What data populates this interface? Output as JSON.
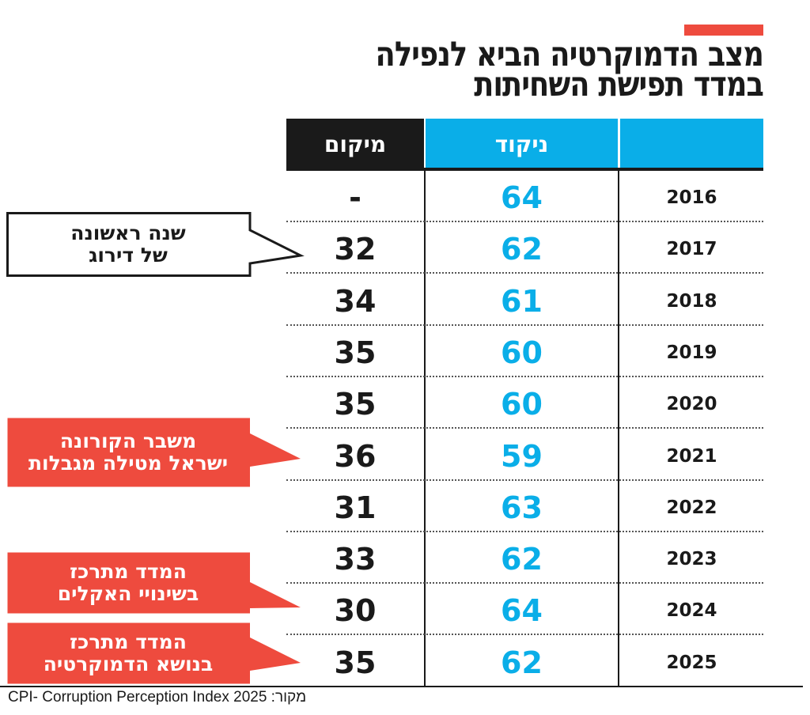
{
  "title": {
    "line1": "מצב הדמוקרטיה הביא לנפילה",
    "line2": "במדד תפישת השחיתות"
  },
  "colors": {
    "accent_red": "#ee4b3e",
    "score_blue": "#0aaee8",
    "black": "#1a1a1a"
  },
  "chart_data": {
    "type": "table",
    "columns": [
      "מיקום",
      "ניקוד",
      ""
    ],
    "rows": [
      {
        "year": "2016",
        "score": "64",
        "rank": "-"
      },
      {
        "year": "2017",
        "score": "62",
        "rank": "32"
      },
      {
        "year": "2018",
        "score": "61",
        "rank": "34"
      },
      {
        "year": "2019",
        "score": "60",
        "rank": "35"
      },
      {
        "year": "2020",
        "score": "60",
        "rank": "35"
      },
      {
        "year": "2021",
        "score": "59",
        "rank": "36"
      },
      {
        "year": "2022",
        "score": "63",
        "rank": "31"
      },
      {
        "year": "2023",
        "score": "62",
        "rank": "33"
      },
      {
        "year": "2024",
        "score": "64",
        "rank": "30"
      },
      {
        "year": "2025",
        "score": "62",
        "rank": "35"
      }
    ],
    "annotations": [
      {
        "year": "2017",
        "line1": "שנה ראשונה",
        "line2": "של דירוג",
        "style": "outline"
      },
      {
        "year": "2021",
        "line1": "משבר הקורונה",
        "line2": "ישראל מטילה מגבלות",
        "style": "red"
      },
      {
        "year": "2024",
        "line1": "המדד מתרכז",
        "line2": "בשינויי האקלים",
        "style": "red"
      },
      {
        "year": "2025",
        "line1": "המדד מתרכז",
        "line2": "בנושא הדמוקרטיה",
        "style": "red"
      }
    ]
  },
  "source": "CPI- Corruption Perception Index 2025 :מקור"
}
